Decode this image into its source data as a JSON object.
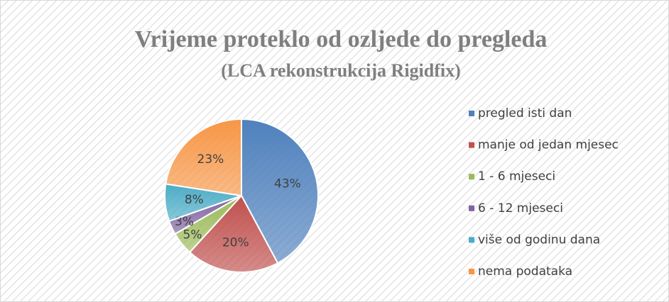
{
  "chart_data": {
    "type": "pie",
    "title": "Vrijeme proteklo od ozljede do pregleda",
    "subtitle": "(LCA rekonstrukcija Rigidfix)",
    "categories": [
      "pregled isti dan",
      "manje od jedan mjesec",
      "1 - 6 mjeseci",
      "6 - 12 mjeseci",
      "više od godinu dana",
      "nema podataka"
    ],
    "values": [
      43,
      20,
      5,
      3,
      8,
      23
    ],
    "value_labels": [
      "43%",
      "20%",
      "5%",
      "3%",
      "8%",
      "23%"
    ],
    "colors": [
      "#4f81bd",
      "#c0504d",
      "#9bbb59",
      "#8064a2",
      "#4bacc6",
      "#f79646"
    ],
    "legend": "right"
  }
}
